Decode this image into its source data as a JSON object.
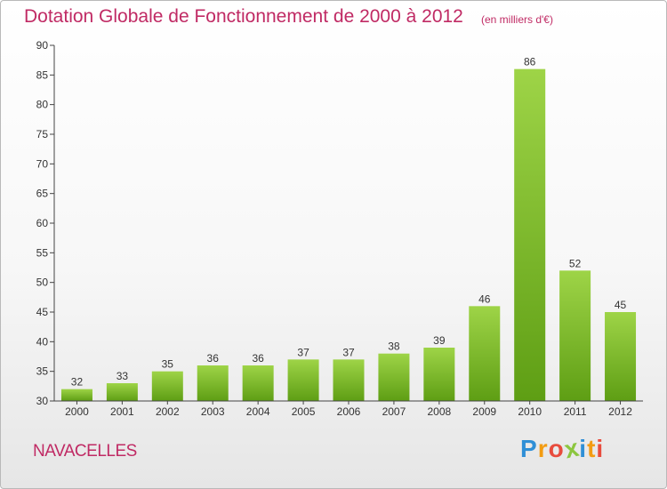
{
  "header": {
    "title": "Dotation Globale de Fonctionnement de 2000 à 2012",
    "unit": "(en milliers d'€)"
  },
  "footer": {
    "commune": "NAVACELLES",
    "logo_letters": [
      "P",
      "r",
      "o",
      "x",
      "i",
      "t",
      "i"
    ],
    "logo_colors": [
      "#2f8fd6",
      "#f39c12",
      "#e84c3d",
      "#8cc63f",
      "#2f8fd6",
      "#f39c12",
      "#e84c3d"
    ]
  },
  "chart_data": {
    "type": "bar",
    "title": "Dotation Globale de Fonctionnement de 2000 à 2012",
    "subtitle": "(en milliers d'€)",
    "categories": [
      "2000",
      "2001",
      "2002",
      "2003",
      "2004",
      "2005",
      "2006",
      "2007",
      "2008",
      "2009",
      "2010",
      "2011",
      "2012"
    ],
    "values": [
      32,
      33,
      35,
      36,
      36,
      37,
      37,
      38,
      39,
      46,
      86,
      52,
      45
    ],
    "ylim": [
      30,
      90
    ],
    "yticks": [
      30,
      35,
      40,
      45,
      50,
      55,
      60,
      65,
      70,
      75,
      80,
      85,
      90
    ],
    "grid": false,
    "colors": {
      "bar_light": "#9ed447",
      "bar_dark": "#5e9e14",
      "axis": "#444444"
    }
  }
}
